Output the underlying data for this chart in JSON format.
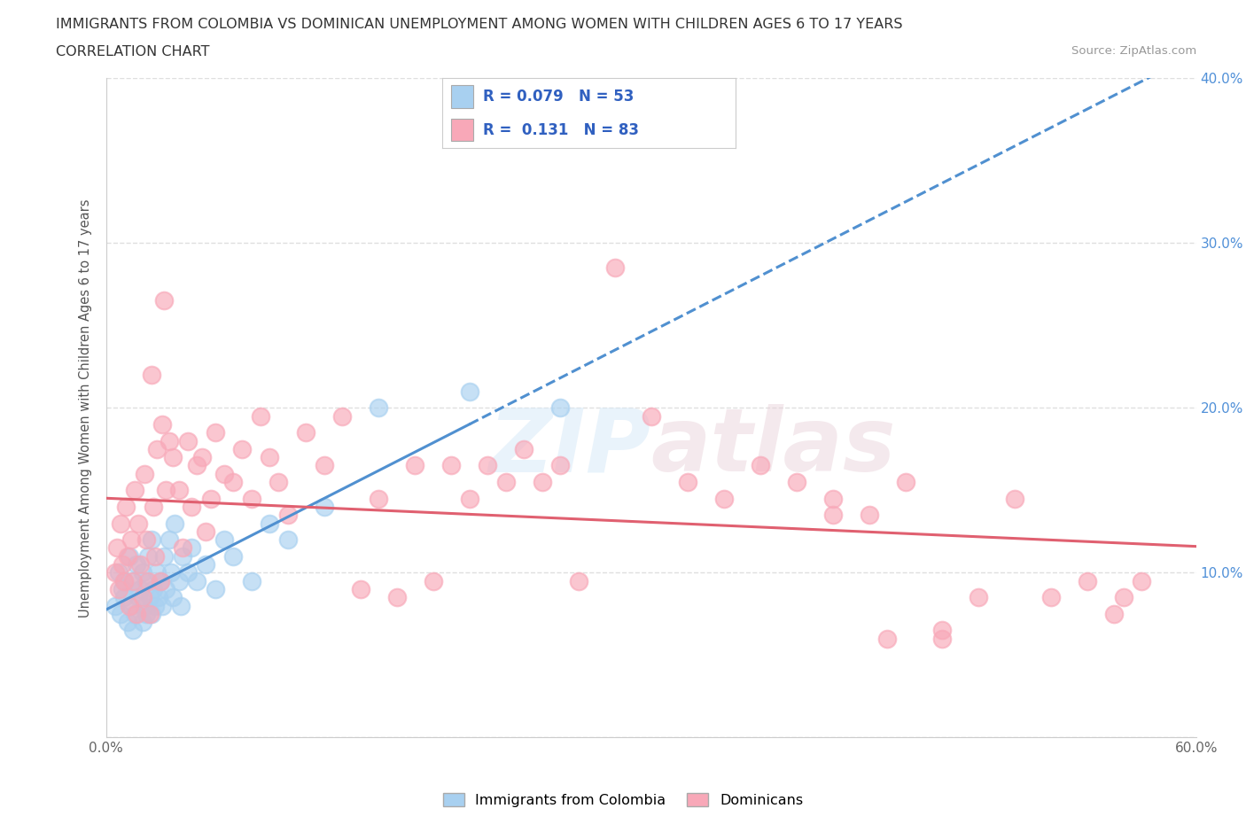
{
  "title": "IMMIGRANTS FROM COLOMBIA VS DOMINICAN UNEMPLOYMENT AMONG WOMEN WITH CHILDREN AGES 6 TO 17 YEARS",
  "subtitle": "CORRELATION CHART",
  "source": "Source: ZipAtlas.com",
  "ylabel": "Unemployment Among Women with Children Ages 6 to 17 years",
  "xlim": [
    0.0,
    0.6
  ],
  "ylim": [
    0.0,
    0.4
  ],
  "colombia_R": 0.079,
  "colombia_N": 53,
  "dominican_R": 0.131,
  "dominican_N": 83,
  "colombia_color": "#a8d0f0",
  "dominican_color": "#f8a8b8",
  "colombia_line_color": "#5090d0",
  "dominican_line_color": "#e06070",
  "legend_text_color": "#3060c0",
  "right_axis_color": "#5090d8",
  "colombia_x": [
    0.005,
    0.007,
    0.008,
    0.009,
    0.01,
    0.01,
    0.012,
    0.013,
    0.014,
    0.015,
    0.015,
    0.016,
    0.017,
    0.018,
    0.019,
    0.02,
    0.02,
    0.021,
    0.022,
    0.022,
    0.023,
    0.024,
    0.025,
    0.025,
    0.026,
    0.027,
    0.028,
    0.029,
    0.03,
    0.031,
    0.032,
    0.033,
    0.035,
    0.036,
    0.037,
    0.038,
    0.04,
    0.041,
    0.042,
    0.045,
    0.047,
    0.05,
    0.055,
    0.06,
    0.065,
    0.07,
    0.08,
    0.09,
    0.1,
    0.12,
    0.15,
    0.2,
    0.25
  ],
  "colombia_y": [
    0.08,
    0.1,
    0.075,
    0.09,
    0.085,
    0.095,
    0.07,
    0.11,
    0.08,
    0.095,
    0.065,
    0.075,
    0.105,
    0.085,
    0.09,
    0.07,
    0.1,
    0.08,
    0.095,
    0.075,
    0.11,
    0.085,
    0.075,
    0.12,
    0.09,
    0.08,
    0.1,
    0.085,
    0.095,
    0.08,
    0.11,
    0.09,
    0.12,
    0.1,
    0.085,
    0.13,
    0.095,
    0.08,
    0.11,
    0.1,
    0.115,
    0.095,
    0.105,
    0.09,
    0.12,
    0.11,
    0.095,
    0.13,
    0.12,
    0.14,
    0.2,
    0.21,
    0.2
  ],
  "dominican_x": [
    0.005,
    0.006,
    0.007,
    0.008,
    0.009,
    0.01,
    0.011,
    0.012,
    0.013,
    0.014,
    0.015,
    0.016,
    0.017,
    0.018,
    0.019,
    0.02,
    0.021,
    0.022,
    0.023,
    0.024,
    0.025,
    0.026,
    0.027,
    0.028,
    0.03,
    0.031,
    0.032,
    0.033,
    0.035,
    0.037,
    0.04,
    0.042,
    0.045,
    0.047,
    0.05,
    0.053,
    0.055,
    0.058,
    0.06,
    0.065,
    0.07,
    0.075,
    0.08,
    0.085,
    0.09,
    0.095,
    0.1,
    0.11,
    0.12,
    0.13,
    0.14,
    0.15,
    0.16,
    0.17,
    0.18,
    0.19,
    0.2,
    0.21,
    0.22,
    0.23,
    0.24,
    0.25,
    0.26,
    0.28,
    0.3,
    0.32,
    0.34,
    0.36,
    0.38,
    0.4,
    0.42,
    0.44,
    0.46,
    0.48,
    0.5,
    0.52,
    0.54,
    0.555,
    0.56,
    0.57,
    0.4,
    0.43,
    0.46
  ],
  "dominican_y": [
    0.1,
    0.115,
    0.09,
    0.13,
    0.105,
    0.095,
    0.14,
    0.11,
    0.08,
    0.12,
    0.095,
    0.15,
    0.075,
    0.13,
    0.105,
    0.085,
    0.16,
    0.12,
    0.095,
    0.075,
    0.22,
    0.14,
    0.11,
    0.175,
    0.095,
    0.19,
    0.265,
    0.15,
    0.18,
    0.17,
    0.15,
    0.115,
    0.18,
    0.14,
    0.165,
    0.17,
    0.125,
    0.145,
    0.185,
    0.16,
    0.155,
    0.175,
    0.145,
    0.195,
    0.17,
    0.155,
    0.135,
    0.185,
    0.165,
    0.195,
    0.09,
    0.145,
    0.085,
    0.165,
    0.095,
    0.165,
    0.145,
    0.165,
    0.155,
    0.175,
    0.155,
    0.165,
    0.095,
    0.285,
    0.195,
    0.155,
    0.145,
    0.165,
    0.155,
    0.145,
    0.135,
    0.155,
    0.06,
    0.085,
    0.145,
    0.085,
    0.095,
    0.075,
    0.085,
    0.095,
    0.135,
    0.06,
    0.065
  ],
  "watermark_zip": "ZIP",
  "watermark_atlas": "atlas",
  "background_color": "#ffffff",
  "grid_color": "#d8d8d8"
}
